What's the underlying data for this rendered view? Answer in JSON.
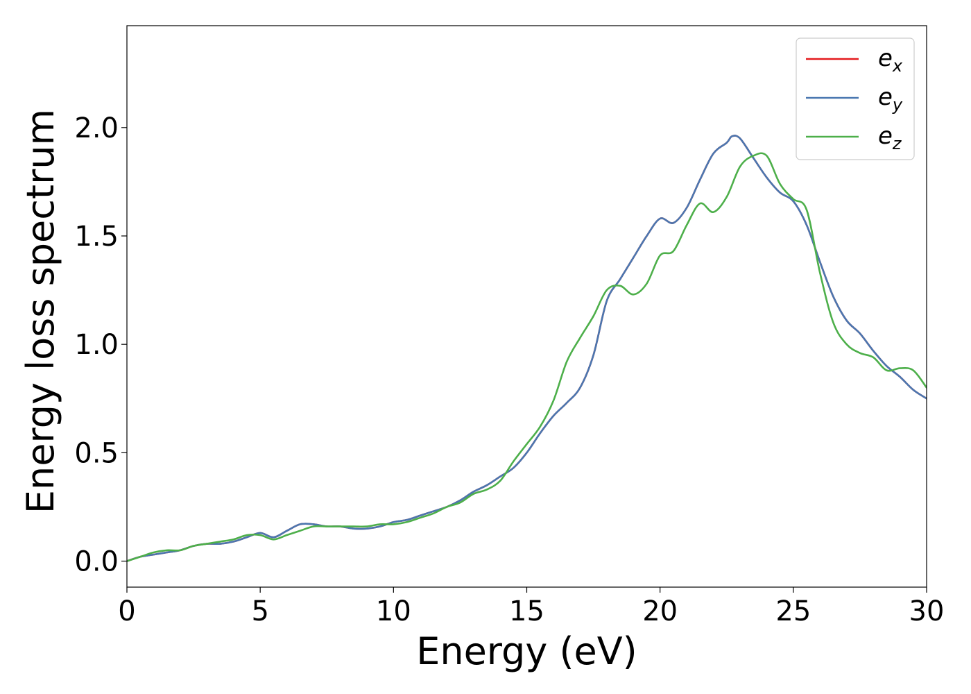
{
  "chart_data": {
    "type": "line",
    "title": "",
    "xlabel": "Energy (eV)",
    "ylabel": "Energy loss spectrum",
    "xlim": [
      0,
      30
    ],
    "ylim": [
      -0.12,
      2.47
    ],
    "xticks": [
      "0",
      "5",
      "10",
      "15",
      "20",
      "25",
      "30"
    ],
    "yticks": [
      "0.0",
      "0.5",
      "1.0",
      "1.5",
      "2.0"
    ],
    "grid": false,
    "legend": "top-right",
    "series": [
      {
        "name": "e_x",
        "color": "#e41a1c",
        "x": [
          0,
          0.5,
          1,
          1.5,
          2,
          2.5,
          3,
          3.5,
          4,
          4.5,
          5,
          5.5,
          6,
          6.5,
          7,
          7.5,
          8,
          8.5,
          9,
          9.5,
          10,
          10.5,
          11,
          11.5,
          12,
          12.5,
          13,
          13.5,
          14,
          14.5,
          15,
          15.5,
          16,
          16.5,
          17,
          17.5,
          18,
          18.5,
          19,
          19.5,
          20,
          20.5,
          21,
          21.5,
          22,
          22.5,
          22.7,
          23,
          23.5,
          24,
          24.5,
          25,
          25.5,
          26,
          26.5,
          27,
          27.5,
          28,
          28.5,
          29,
          29.5,
          30
        ],
        "y": [
          0.0,
          0.02,
          0.03,
          0.04,
          0.05,
          0.07,
          0.08,
          0.08,
          0.09,
          0.11,
          0.13,
          0.11,
          0.14,
          0.17,
          0.17,
          0.16,
          0.16,
          0.15,
          0.15,
          0.16,
          0.18,
          0.19,
          0.21,
          0.23,
          0.25,
          0.28,
          0.32,
          0.35,
          0.39,
          0.43,
          0.5,
          0.59,
          0.67,
          0.73,
          0.8,
          0.95,
          1.2,
          1.3,
          1.4,
          1.5,
          1.58,
          1.56,
          1.63,
          1.76,
          1.88,
          1.93,
          1.96,
          1.95,
          1.86,
          1.77,
          1.7,
          1.66,
          1.55,
          1.38,
          1.22,
          1.11,
          1.05,
          0.97,
          0.9,
          0.85,
          0.79,
          0.75
        ]
      },
      {
        "name": "e_y",
        "color": "#4a77b0",
        "x": [
          0,
          0.5,
          1,
          1.5,
          2,
          2.5,
          3,
          3.5,
          4,
          4.5,
          5,
          5.5,
          6,
          6.5,
          7,
          7.5,
          8,
          8.5,
          9,
          9.5,
          10,
          10.5,
          11,
          11.5,
          12,
          12.5,
          13,
          13.5,
          14,
          14.5,
          15,
          15.5,
          16,
          16.5,
          17,
          17.5,
          18,
          18.5,
          19,
          19.5,
          20,
          20.5,
          21,
          21.5,
          22,
          22.5,
          22.7,
          23,
          23.5,
          24,
          24.5,
          25,
          25.5,
          26,
          26.5,
          27,
          27.5,
          28,
          28.5,
          29,
          29.5,
          30
        ],
        "y": [
          0.0,
          0.02,
          0.03,
          0.04,
          0.05,
          0.07,
          0.08,
          0.08,
          0.09,
          0.11,
          0.13,
          0.11,
          0.14,
          0.17,
          0.17,
          0.16,
          0.16,
          0.15,
          0.15,
          0.16,
          0.18,
          0.19,
          0.21,
          0.23,
          0.25,
          0.28,
          0.32,
          0.35,
          0.39,
          0.43,
          0.5,
          0.59,
          0.67,
          0.73,
          0.8,
          0.95,
          1.2,
          1.3,
          1.4,
          1.5,
          1.58,
          1.56,
          1.63,
          1.76,
          1.88,
          1.93,
          1.96,
          1.95,
          1.86,
          1.77,
          1.7,
          1.66,
          1.55,
          1.38,
          1.22,
          1.11,
          1.05,
          0.97,
          0.9,
          0.85,
          0.79,
          0.75
        ]
      },
      {
        "name": "e_z",
        "color": "#4daf4a",
        "x": [
          0,
          0.5,
          1,
          1.5,
          2,
          2.5,
          3,
          3.5,
          4,
          4.5,
          5,
          5.5,
          6,
          6.5,
          7,
          7.5,
          8,
          8.5,
          9,
          9.5,
          10,
          10.5,
          11,
          11.5,
          12,
          12.5,
          13,
          13.5,
          14,
          14.5,
          15,
          15.5,
          16,
          16.5,
          17,
          17.5,
          18,
          18.5,
          19,
          19.5,
          20,
          20.5,
          21,
          21.5,
          22,
          22.5,
          23,
          23.5,
          24,
          24.5,
          25,
          25.5,
          26,
          26.5,
          27,
          27.5,
          28,
          28.5,
          29,
          29.5,
          30
        ],
        "y": [
          0.0,
          0.02,
          0.04,
          0.05,
          0.05,
          0.07,
          0.08,
          0.09,
          0.1,
          0.12,
          0.12,
          0.1,
          0.12,
          0.14,
          0.16,
          0.16,
          0.16,
          0.16,
          0.16,
          0.17,
          0.17,
          0.18,
          0.2,
          0.22,
          0.25,
          0.27,
          0.31,
          0.33,
          0.37,
          0.46,
          0.54,
          0.62,
          0.74,
          0.92,
          1.03,
          1.13,
          1.25,
          1.27,
          1.23,
          1.28,
          1.41,
          1.43,
          1.55,
          1.65,
          1.61,
          1.68,
          1.82,
          1.87,
          1.87,
          1.74,
          1.67,
          1.62,
          1.33,
          1.1,
          1.0,
          0.96,
          0.94,
          0.88,
          0.89,
          0.88,
          0.8
        ]
      }
    ]
  }
}
